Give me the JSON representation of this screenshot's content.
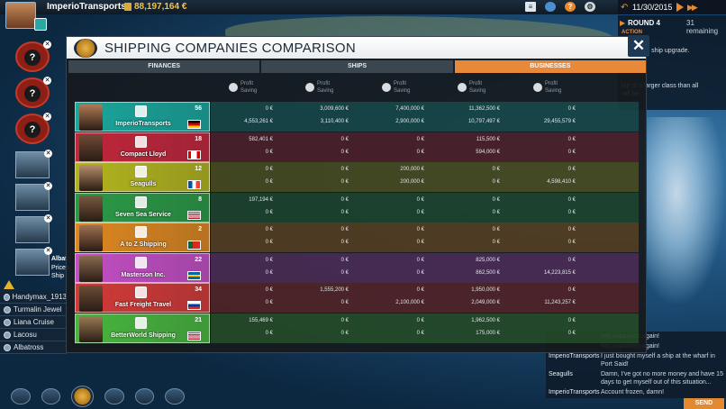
{
  "header": {
    "company": "ImperioTransports",
    "money": "88,197,164 €",
    "date": "11/30/2015",
    "top_icons": [
      "list-icon",
      "globe-icon",
      "help-icon",
      "settings-icon"
    ]
  },
  "right_panel": {
    "round": "ROUND 4",
    "remaining": "31 remaining",
    "action_label": "ACTION",
    "text_lines": [
      "y installed ship upgrade.",
      "",
      "",
      "hip of a larger class than all",
      "will be.",
      "",
      "",
      ""
    ]
  },
  "left": {
    "albatross_title": "Albat",
    "albatross_line2": "Prices",
    "albatross_line3": "Ship i",
    "ships": [
      "Handymax_1913",
      "Turmalin Jewel",
      "Liana Cruise",
      "Lacosu",
      "Albatross"
    ]
  },
  "modal": {
    "title": "SHIPPING COMPANIES COMPARISON",
    "tabs": [
      "FINANCES",
      "SHIPS",
      "BUSINESSES"
    ],
    "columns": [
      {
        "l1": "Profit",
        "l2": "Saving"
      },
      {
        "l1": "Profit",
        "l2": "Saving"
      },
      {
        "l1": "Profit",
        "l2": "Saving"
      },
      {
        "l1": "Profit",
        "l2": "Saving"
      },
      {
        "l1": "Profit",
        "l2": "Saving"
      }
    ],
    "companies": [
      {
        "name": "ImperioTransports",
        "num": "56",
        "values": [
          [
            "0 €",
            "4,553,261 €"
          ],
          [
            "3,009,600 €",
            "3,110,400 €"
          ],
          [
            "7,400,000 €",
            "2,900,000 €"
          ],
          [
            "11,362,500 €",
            "10,797,497 €"
          ],
          [
            "0 €",
            "29,455,579 €"
          ]
        ]
      },
      {
        "name": "Compact Lloyd",
        "num": "18",
        "values": [
          [
            "582,401 €",
            "0 €"
          ],
          [
            "0 €",
            "0 €"
          ],
          [
            "0 €",
            "0 €"
          ],
          [
            "115,500 €",
            "594,000 €"
          ],
          [
            "0 €",
            "0 €"
          ]
        ]
      },
      {
        "name": "Seagulls",
        "num": "12",
        "values": [
          [
            "0 €",
            "0 €"
          ],
          [
            "0 €",
            "0 €"
          ],
          [
            "200,000 €",
            "200,000 €"
          ],
          [
            "0 €",
            "0 €"
          ],
          [
            "0 €",
            "4,598,410 €"
          ]
        ]
      },
      {
        "name": "Seven Sea Service",
        "num": "8",
        "values": [
          [
            "197,194 €",
            "0 €"
          ],
          [
            "0 €",
            "0 €"
          ],
          [
            "0 €",
            "0 €"
          ],
          [
            "0 €",
            "0 €"
          ],
          [
            "0 €",
            "0 €"
          ]
        ]
      },
      {
        "name": "A to Z Shipping",
        "num": "2",
        "values": [
          [
            "0 €",
            "0 €"
          ],
          [
            "0 €",
            "0 €"
          ],
          [
            "0 €",
            "0 €"
          ],
          [
            "0 €",
            "0 €"
          ],
          [
            "0 €",
            "0 €"
          ]
        ]
      },
      {
        "name": "Masterson Inc.",
        "num": "22",
        "values": [
          [
            "0 €",
            "0 €"
          ],
          [
            "0 €",
            "0 €"
          ],
          [
            "0 €",
            "0 €"
          ],
          [
            "825,000 €",
            "862,500 €"
          ],
          [
            "0 €",
            "14,223,815 €"
          ]
        ]
      },
      {
        "name": "Fast Freight Travel",
        "num": "34",
        "values": [
          [
            "0 €",
            "0 €"
          ],
          [
            "1,555,200 €",
            "0 €"
          ],
          [
            "0 €",
            "2,100,000 €"
          ],
          [
            "1,950,000 €",
            "2,049,000 €"
          ],
          [
            "0 €",
            "11,243,257 €"
          ]
        ]
      },
      {
        "name": "BetterWorld Shipping",
        "num": "21",
        "values": [
          [
            "155,469 €",
            "0 €"
          ],
          [
            "0 €",
            "0 €"
          ],
          [
            "0 €",
            "0 €"
          ],
          [
            "1,962,500 €",
            "175,000 €"
          ],
          [
            "0 €",
            "0 €"
          ]
        ]
      }
    ]
  },
  "chat": {
    "rows": [
      {
        "who": "",
        "msg": "has expanded again!"
      },
      {
        "who": "",
        "msg": "has expanded again!"
      },
      {
        "who": "ImperioTransports",
        "msg": "I just bought myself a ship at the wharf in Port Said!"
      },
      {
        "who": "Seagulls",
        "msg": "Damn, I've got no more money and have 15 days to get myself out of this situation..."
      },
      {
        "who": "ImperioTransports",
        "msg": "Account frozen, damn!"
      }
    ],
    "send": "SEND"
  }
}
